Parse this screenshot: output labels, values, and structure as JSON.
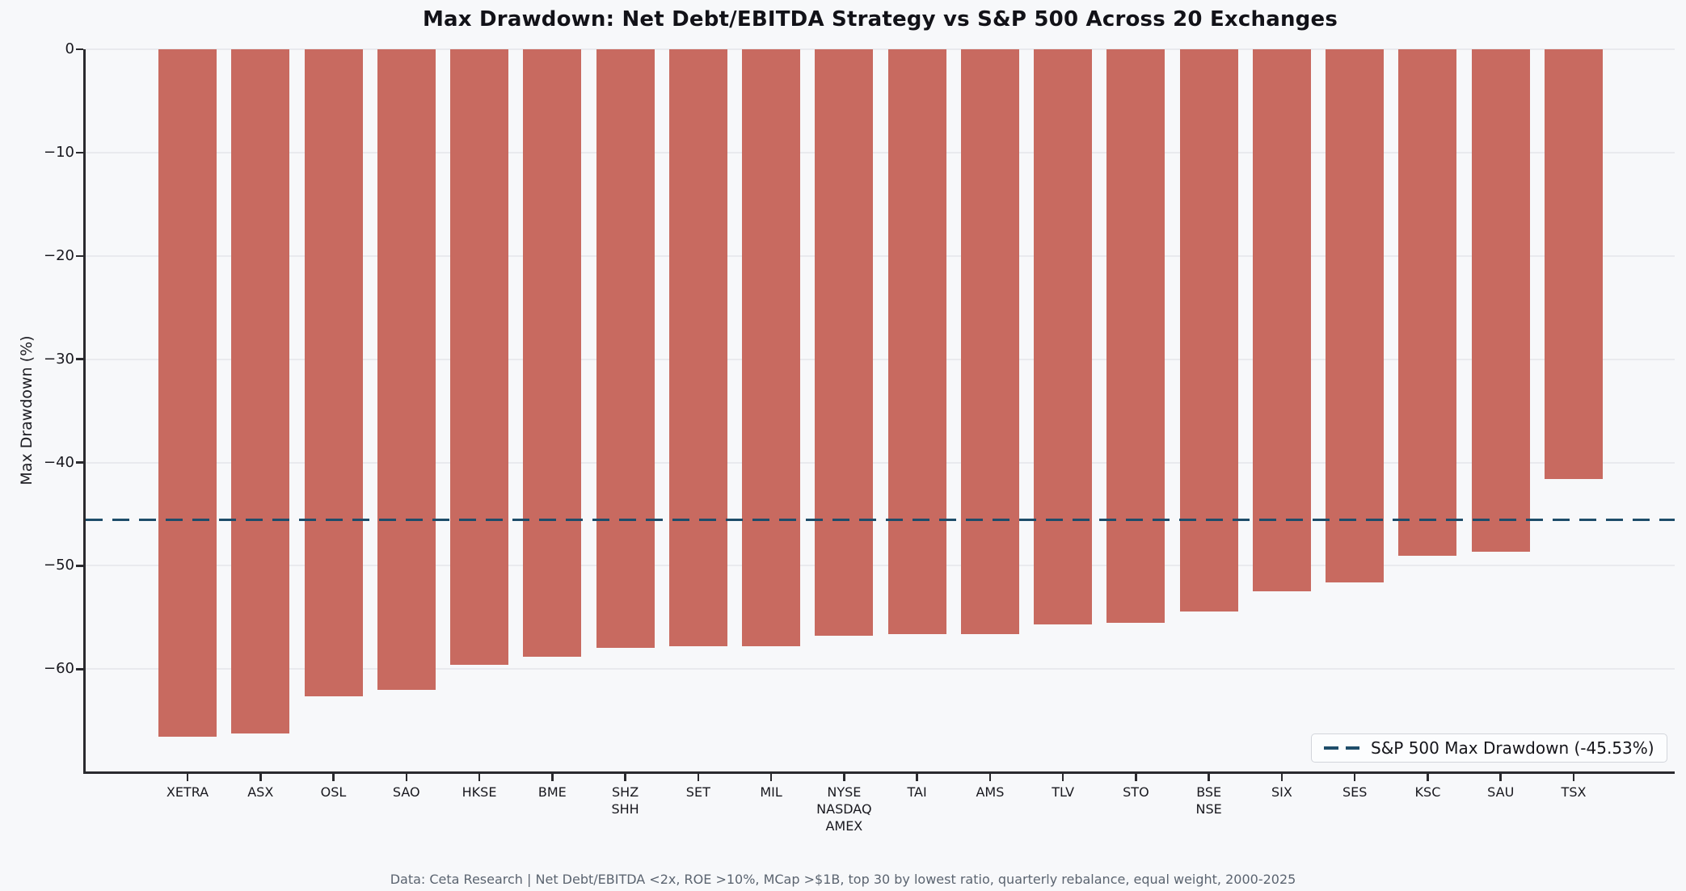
{
  "chart_data": {
    "type": "bar",
    "title": "Max Drawdown: Net Debt/EBITDA Strategy vs S&P 500 Across 20 Exchanges",
    "ylabel": "Max Drawdown (%)",
    "footer": "Data: Ceta Research | Net Debt/EBITDA <2x, ROE >10%, MCap >$1B, top 30 by lowest ratio, quarterly rebalance, equal weight, 2000-2025",
    "categories": [
      "XETRA",
      "ASX",
      "OSL",
      "SAO",
      "HKSE",
      "BME",
      "SHZ\nSHH",
      "SET",
      "MIL",
      "NYSE\nNASDAQ\nAMEX",
      "TAI",
      "AMS",
      "TLV",
      "STO",
      "BSE\nNSE",
      "SIX",
      "SES",
      "KSC",
      "SAU",
      "TSX"
    ],
    "values": [
      -66.5,
      -66.2,
      -62.6,
      -62.0,
      -59.6,
      -58.8,
      -57.9,
      -57.8,
      -57.8,
      -56.8,
      -56.6,
      -56.6,
      -55.7,
      -55.5,
      -54.4,
      -52.5,
      -51.6,
      -49.0,
      -48.6,
      -41.6
    ],
    "yticks": [
      0,
      -10,
      -20,
      -30,
      -40,
      -50,
      -60
    ],
    "ylim": [
      -69.9,
      0
    ],
    "grid": true,
    "bar_color": "#c86a60",
    "background_color": "#f7f8fa",
    "reference_line": {
      "value": -45.53,
      "legend_label": "S&P 500 Max Drawdown (-45.53%)",
      "color": "#1e4d6a",
      "style": "dashed"
    },
    "legend_position": "lower right"
  }
}
